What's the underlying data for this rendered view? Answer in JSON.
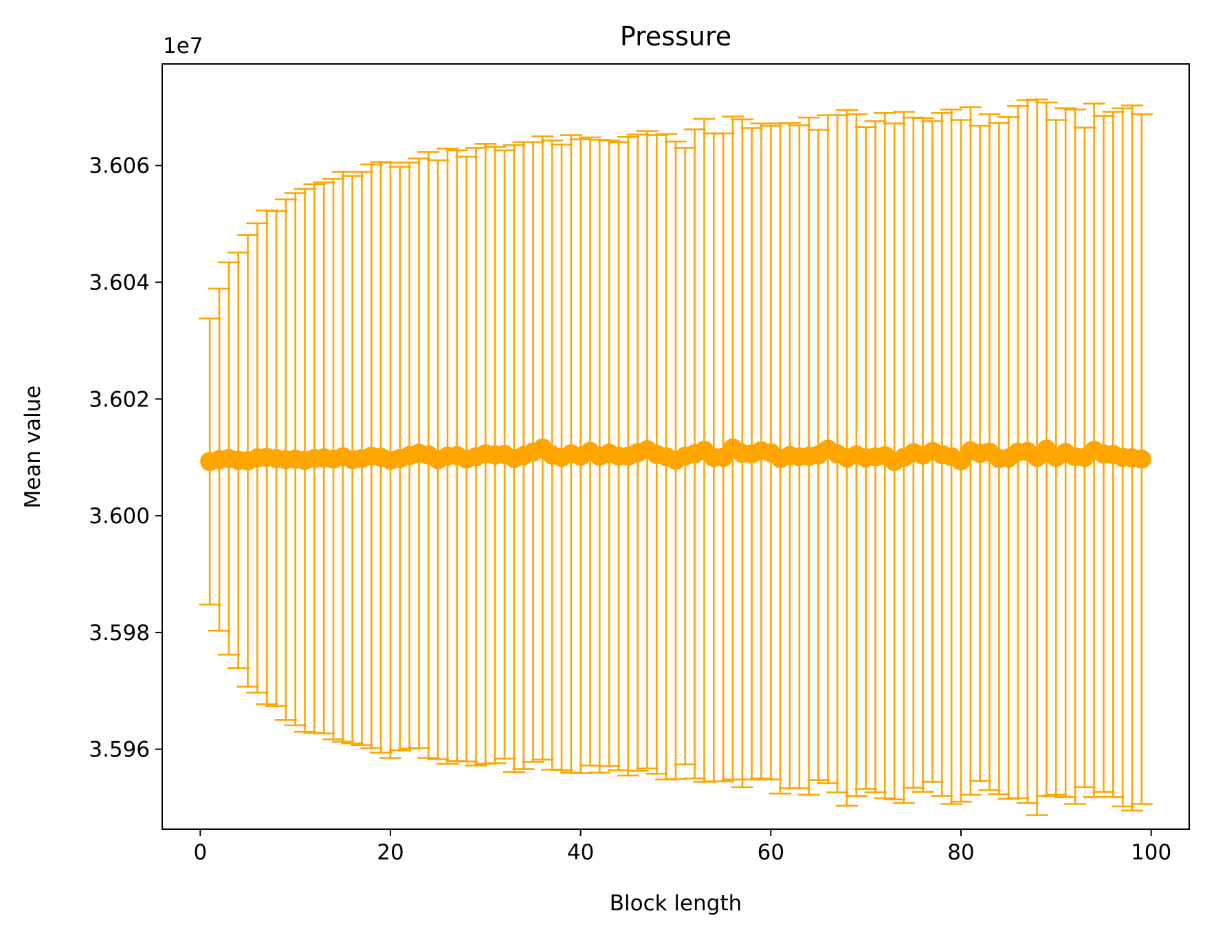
{
  "chart_data": {
    "type": "scatter",
    "title": "Pressure",
    "xlabel": "Block length",
    "ylabel": "Mean value",
    "offset_label": "1e7",
    "xlim": [
      -4,
      104
    ],
    "ylim": [
      3.59463,
      3.60774
    ],
    "xticks": [
      0,
      20,
      40,
      60,
      80,
      100
    ],
    "xtick_labels": [
      "0",
      "20",
      "40",
      "60",
      "80",
      "100"
    ],
    "yticks": [
      3.596,
      3.598,
      3.6,
      3.602,
      3.604,
      3.606
    ],
    "ytick_labels": [
      "3.596",
      "3.598",
      "3.600",
      "3.602",
      "3.604",
      "3.606"
    ],
    "grid": false,
    "series": [
      {
        "color": "#ffa500",
        "marker": "circle",
        "x": [
          1,
          2,
          3,
          4,
          5,
          6,
          7,
          8,
          9,
          10,
          11,
          12,
          13,
          14,
          15,
          16,
          17,
          18,
          19,
          20,
          21,
          22,
          23,
          24,
          25,
          26,
          27,
          28,
          29,
          30,
          31,
          32,
          33,
          34,
          35,
          36,
          37,
          38,
          39,
          40,
          41,
          42,
          43,
          44,
          45,
          46,
          47,
          48,
          49,
          50,
          51,
          52,
          53,
          54,
          55,
          56,
          57,
          58,
          59,
          60,
          61,
          62,
          63,
          64,
          65,
          66,
          67,
          68,
          69,
          70,
          71,
          72,
          73,
          74,
          75,
          76,
          77,
          78,
          79,
          80,
          81,
          82,
          83,
          84,
          85,
          86,
          87,
          88,
          89,
          90,
          91,
          92,
          93,
          94,
          95,
          96,
          97,
          98,
          99
        ],
        "y": [
          3.60093,
          3.60096,
          3.60098,
          3.60095,
          3.60094,
          3.60099,
          3.601,
          3.60098,
          3.60096,
          3.60097,
          3.60095,
          3.60098,
          3.60099,
          3.60097,
          3.60101,
          3.60096,
          3.60098,
          3.60102,
          3.601,
          3.60095,
          3.60098,
          3.60103,
          3.60107,
          3.60104,
          3.60096,
          3.60102,
          3.60103,
          3.60097,
          3.60101,
          3.60106,
          3.60104,
          3.60105,
          3.60098,
          3.60103,
          3.60109,
          3.60116,
          3.60104,
          3.601,
          3.60106,
          3.60102,
          3.6011,
          3.60102,
          3.60107,
          3.60102,
          3.60102,
          3.60108,
          3.60113,
          3.60105,
          3.60101,
          3.60095,
          3.60102,
          3.60106,
          3.60112,
          3.601,
          3.601,
          3.60116,
          3.60107,
          3.60106,
          3.60111,
          3.60108,
          3.60098,
          3.60103,
          3.60101,
          3.60102,
          3.60104,
          3.60114,
          3.60106,
          3.60099,
          3.60104,
          3.60099,
          3.60101,
          3.60103,
          3.60093,
          3.601,
          3.60108,
          3.60104,
          3.6011,
          3.60105,
          3.60101,
          3.60094,
          3.60111,
          3.60107,
          3.60109,
          3.60098,
          3.60099,
          3.60109,
          3.6011,
          3.601,
          3.60114,
          3.601,
          3.60108,
          3.60101,
          3.601,
          3.60112,
          3.60106,
          3.60105,
          3.601,
          3.60099,
          3.60097
        ],
        "yerr": [
          0.00245,
          0.00293,
          0.00336,
          0.00356,
          0.00387,
          0.00402,
          0.00423,
          0.00424,
          0.00446,
          0.00456,
          0.00465,
          0.0047,
          0.00472,
          0.0048,
          0.00488,
          0.00486,
          0.00491,
          0.005,
          0.00506,
          0.0051,
          0.005,
          0.00502,
          0.00505,
          0.00519,
          0.00513,
          0.00527,
          0.00523,
          0.00518,
          0.00529,
          0.00531,
          0.00528,
          0.00521,
          0.00537,
          0.00537,
          0.00531,
          0.00534,
          0.00539,
          0.00536,
          0.00546,
          0.00543,
          0.00538,
          0.00542,
          0.00536,
          0.00538,
          0.00547,
          0.00545,
          0.00546,
          0.00547,
          0.00553,
          0.00546,
          0.00528,
          0.00556,
          0.00568,
          0.00555,
          0.00555,
          0.00568,
          0.00572,
          0.00558,
          0.00561,
          0.0056,
          0.00574,
          0.0057,
          0.00568,
          0.0058,
          0.00557,
          0.00572,
          0.0058,
          0.00596,
          0.00584,
          0.00567,
          0.00575,
          0.00587,
          0.00579,
          0.00592,
          0.00574,
          0.00577,
          0.00566,
          0.00585,
          0.00595,
          0.00584,
          0.00589,
          0.00561,
          0.00579,
          0.00575,
          0.00584,
          0.00593,
          0.00602,
          0.00613,
          0.00594,
          0.00578,
          0.0059,
          0.00595,
          0.00565,
          0.00594,
          0.00579,
          0.00587,
          0.00598,
          0.00604,
          0.00591
        ]
      }
    ]
  }
}
